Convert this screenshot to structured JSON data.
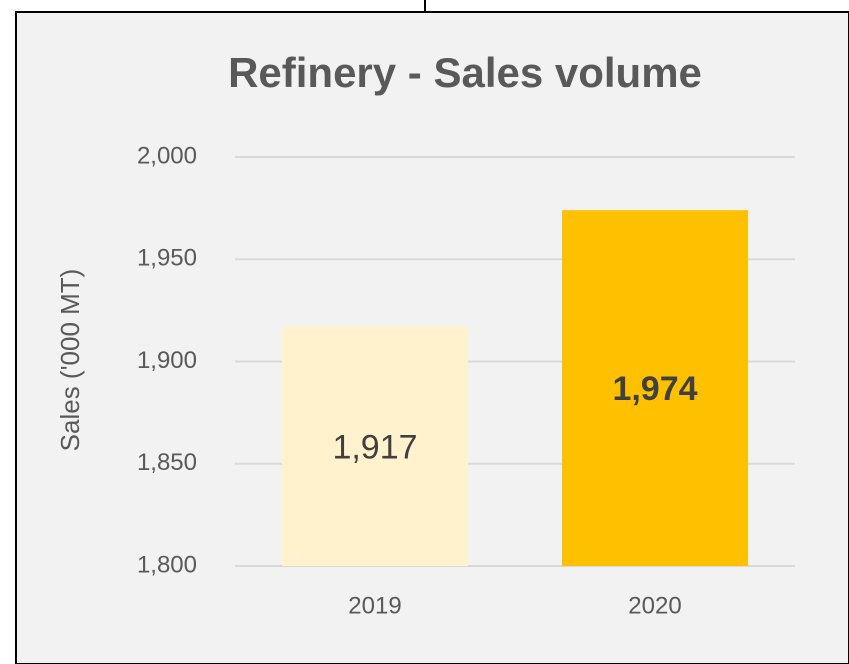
{
  "chart_data": {
    "type": "bar",
    "title": "Refinery - Sales volume",
    "y_label": "Sales ('000 MT)",
    "categories": [
      "2019",
      "2020"
    ],
    "values": [
      1917,
      1974
    ],
    "value_labels": [
      "1,917",
      "1,974"
    ],
    "colors": [
      "#fff2cc",
      "#ffc000"
    ],
    "ylim": [
      1800,
      2000
    ],
    "yticks": [
      {
        "value": 1800,
        "label": "1,800"
      },
      {
        "value": 1850,
        "label": "1,850"
      },
      {
        "value": 1900,
        "label": "1,900"
      },
      {
        "value": 1950,
        "label": "1,950"
      },
      {
        "value": 2000,
        "label": "2,000"
      }
    ],
    "grid": true
  }
}
